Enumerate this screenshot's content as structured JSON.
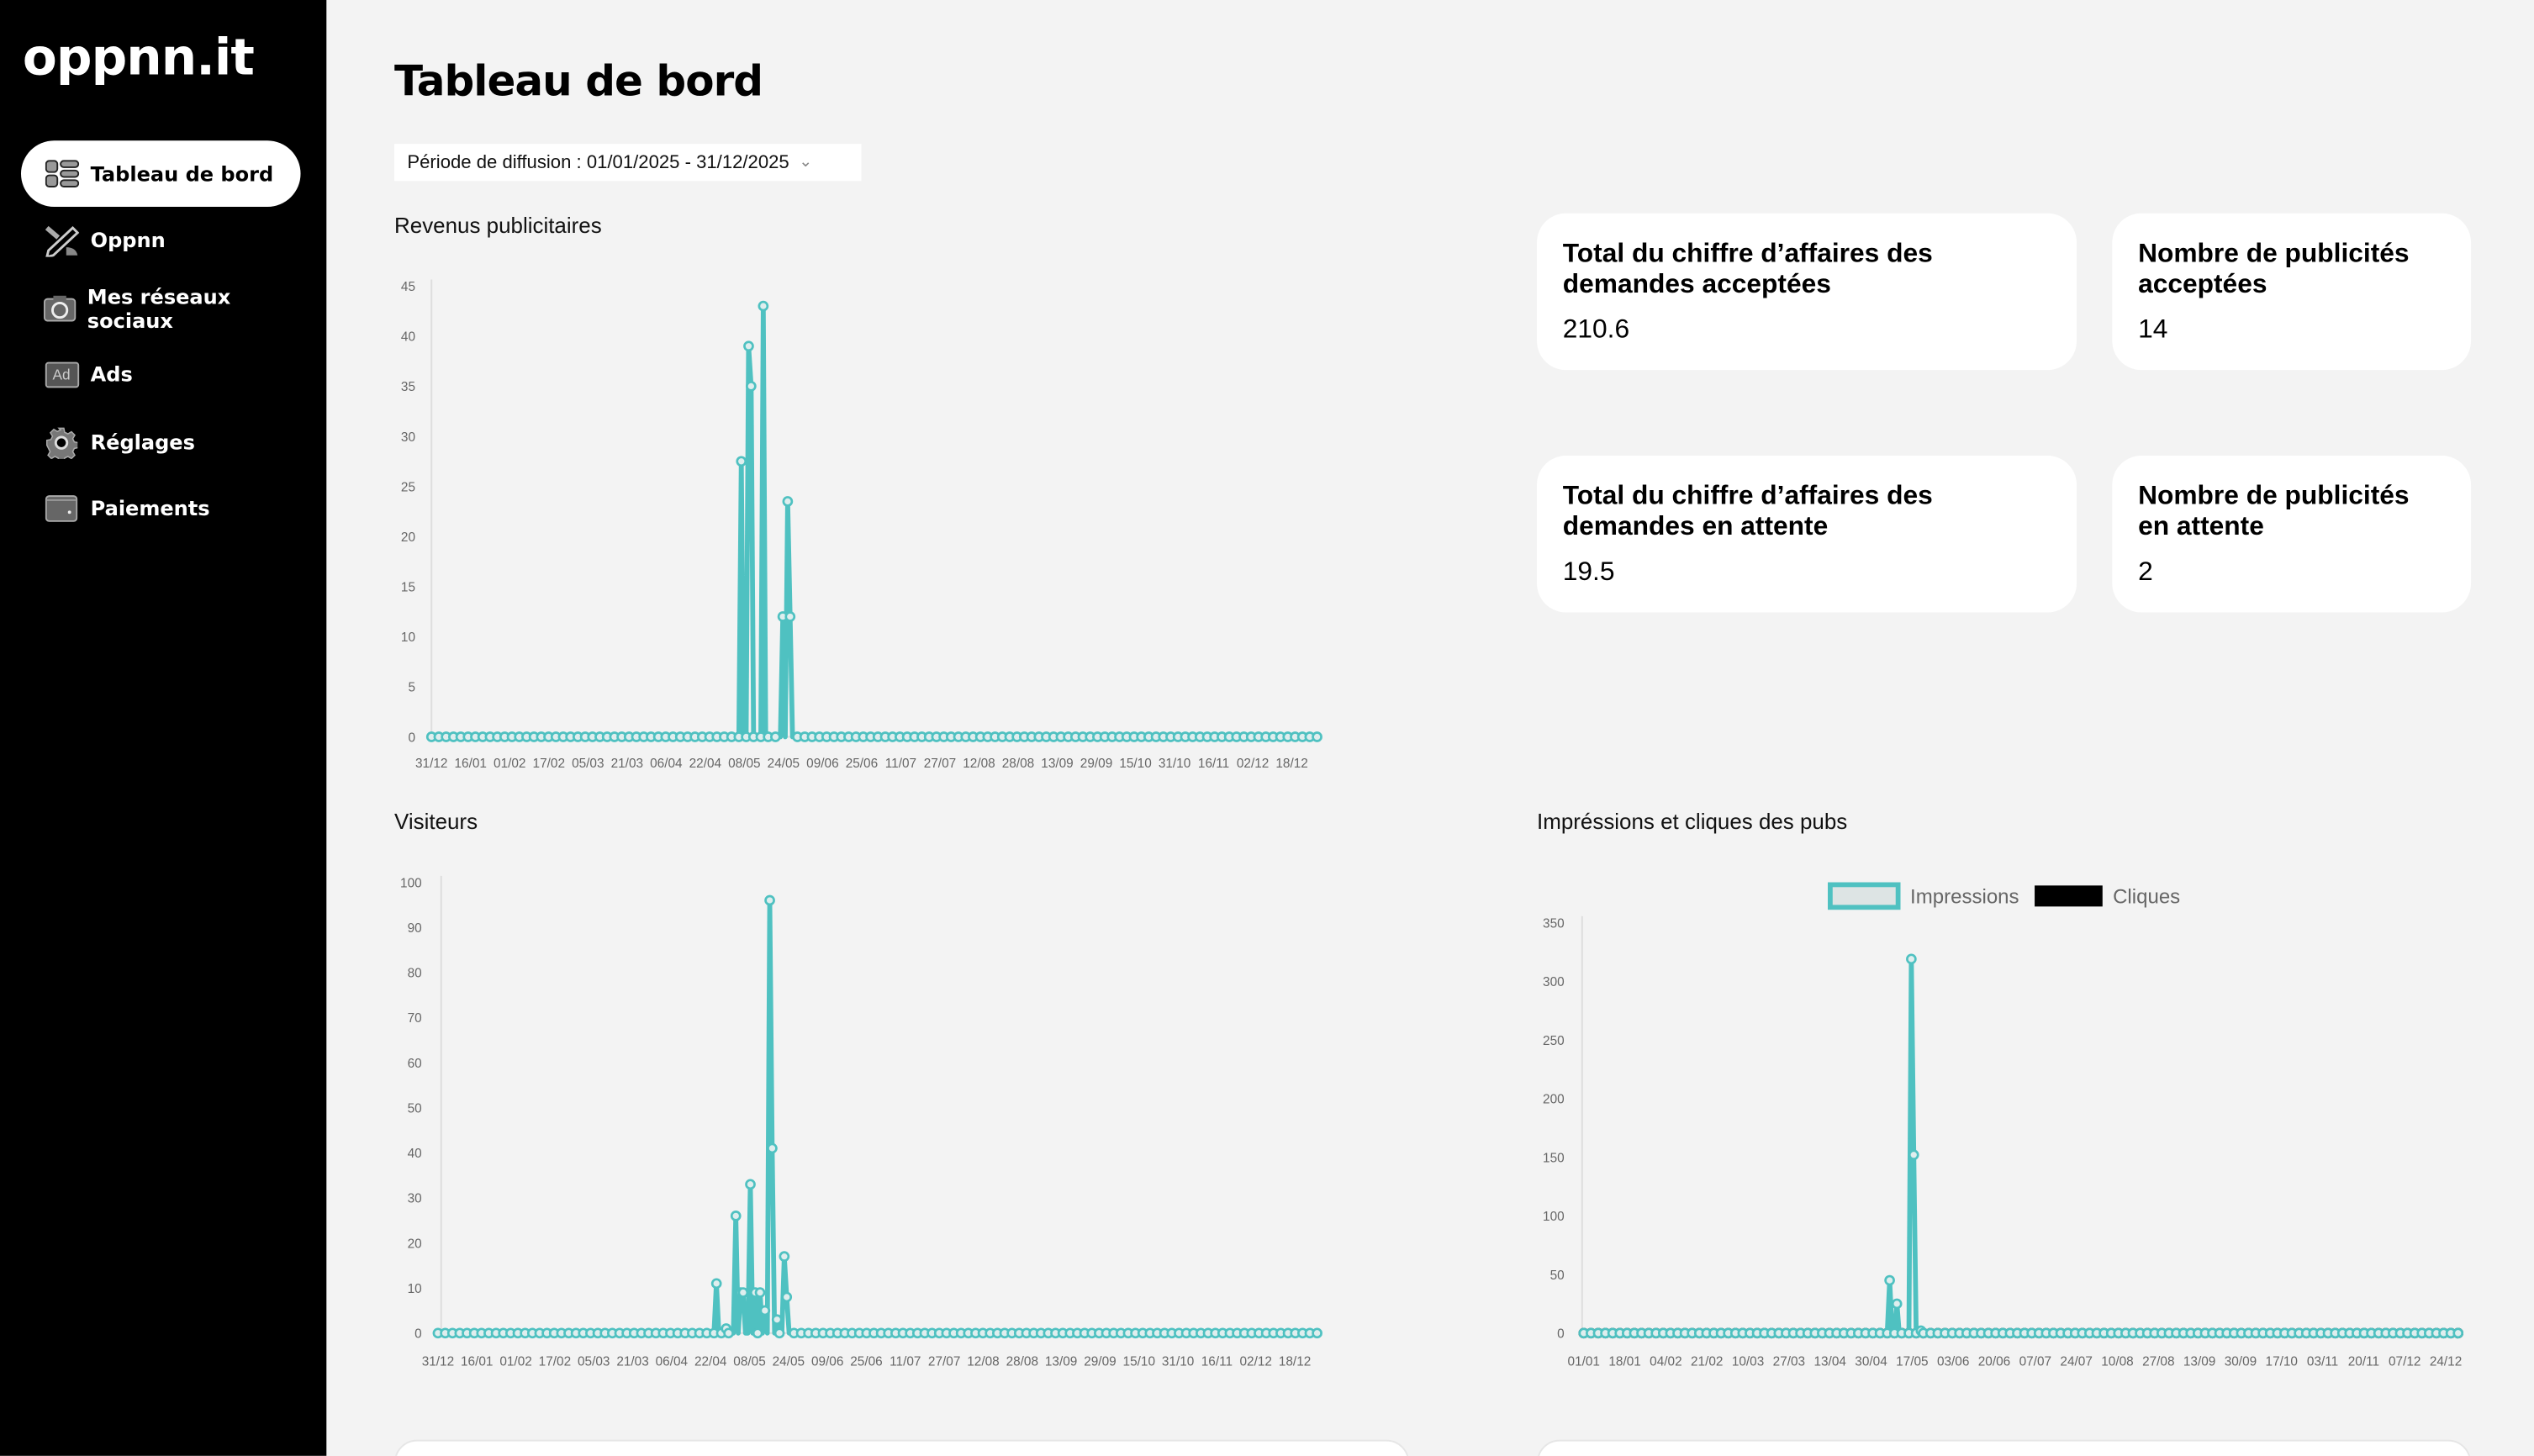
{
  "brand": {
    "logo": "oppnn.it"
  },
  "sidebar": {
    "items": [
      {
        "label": "Tableau de bord",
        "icon": "dashboard-icon",
        "active": true
      },
      {
        "label": "Oppnn",
        "icon": "pencil-brush-icon"
      },
      {
        "label": "Mes réseaux sociaux",
        "icon": "camera-icon"
      },
      {
        "label": "Ads",
        "icon": "ad-icon",
        "icon_text": "Ad"
      },
      {
        "label": "Réglages",
        "icon": "gear-icon"
      },
      {
        "label": "Paiements",
        "icon": "wallet-icon"
      }
    ]
  },
  "header": {
    "title": "Tableau de bord",
    "period_label": "Période de diffusion : 01/01/2025 - 31/12/2025"
  },
  "sections": {
    "revenue": "Revenus publicitaires",
    "visitors": "Visiteurs",
    "impressions": "Impréssions et cliques des pubs"
  },
  "cards": [
    {
      "title": "Total du chiffre d’affaires des demandes acceptées",
      "value": "210.6"
    },
    {
      "title": "Nombre de publicités acceptées",
      "value": "14"
    },
    {
      "title": "Total du chiffre d’affaires des demandes en attente",
      "value": "19.5"
    },
    {
      "title": "Nombre de publicités en attente",
      "value": "2"
    }
  ],
  "colors": {
    "accent": "#4fc1c1",
    "sidebar": "#000000",
    "background": "#f3f3f3"
  },
  "chart_data": [
    {
      "type": "line",
      "title": "Revenus publicitaires",
      "ylim": [
        0,
        45
      ],
      "yticks": [
        0,
        5,
        10,
        15,
        20,
        25,
        30,
        35,
        40,
        45
      ],
      "days": 365,
      "xlabel_step_days": 16,
      "xticks": [
        "31/12",
        "16/01",
        "01/02",
        "17/02",
        "05/03",
        "21/03",
        "06/04",
        "22/04",
        "08/05",
        "24/05",
        "09/06",
        "25/06",
        "11/07",
        "27/07",
        "12/08",
        "28/08",
        "13/09",
        "29/09",
        "15/10",
        "31/10",
        "16/11",
        "02/12",
        "18/12"
      ],
      "series": [
        {
          "name": "Revenus",
          "color": "#4fc1c1",
          "points": [
            [
              127,
              27.5
            ],
            [
              130,
              39
            ],
            [
              131,
              35
            ],
            [
              136,
              43
            ],
            [
              144,
              12
            ],
            [
              146,
              23.5
            ],
            [
              147,
              12
            ]
          ]
        }
      ]
    },
    {
      "type": "line",
      "title": "Visiteurs",
      "ylim": [
        0,
        100
      ],
      "yticks": [
        0,
        10,
        20,
        30,
        40,
        50,
        60,
        70,
        80,
        90,
        100
      ],
      "days": 365,
      "xlabel_step_days": 16,
      "xticks": [
        "31/12",
        "16/01",
        "01/02",
        "17/02",
        "05/03",
        "21/03",
        "06/04",
        "22/04",
        "08/05",
        "24/05",
        "09/06",
        "25/06",
        "11/07",
        "27/07",
        "12/08",
        "28/08",
        "13/09",
        "29/09",
        "15/10",
        "31/10",
        "16/11",
        "02/12",
        "18/12"
      ],
      "series": [
        {
          "name": "Visiteurs",
          "color": "#4fc1c1",
          "points": [
            [
              115,
              11
            ],
            [
              119,
              1
            ],
            [
              123,
              26
            ],
            [
              125,
              9
            ],
            [
              126,
              9
            ],
            [
              129,
              33
            ],
            [
              131,
              9
            ],
            [
              133,
              9
            ],
            [
              135,
              5
            ],
            [
              137,
              96
            ],
            [
              138,
              41
            ],
            [
              140,
              3
            ],
            [
              143,
              17
            ],
            [
              144,
              8
            ]
          ]
        }
      ]
    },
    {
      "type": "line",
      "title": "Impréssions et cliques des pubs",
      "ylim": [
        0,
        350
      ],
      "yticks": [
        0,
        50,
        100,
        150,
        200,
        250,
        300,
        350
      ],
      "days": 365,
      "xlabel_step_days": 17,
      "xticks": [
        "01/01",
        "18/01",
        "04/02",
        "21/02",
        "10/03",
        "27/03",
        "13/04",
        "30/04",
        "17/05",
        "03/06",
        "20/06",
        "07/07",
        "24/07",
        "10/08",
        "27/08",
        "13/09",
        "30/09",
        "17/10",
        "03/11",
        "20/11",
        "07/12",
        "24/12"
      ],
      "legend": [
        "Impressions",
        "Cliques"
      ],
      "series": [
        {
          "name": "Cliques",
          "color": "#000000",
          "points": []
        },
        {
          "name": "Impressions",
          "color": "#4fc1c1",
          "points": [
            [
              127,
              45
            ],
            [
              130,
              25
            ],
            [
              136,
              319
            ],
            [
              137,
              152
            ],
            [
              140,
              2
            ]
          ]
        }
      ]
    }
  ]
}
